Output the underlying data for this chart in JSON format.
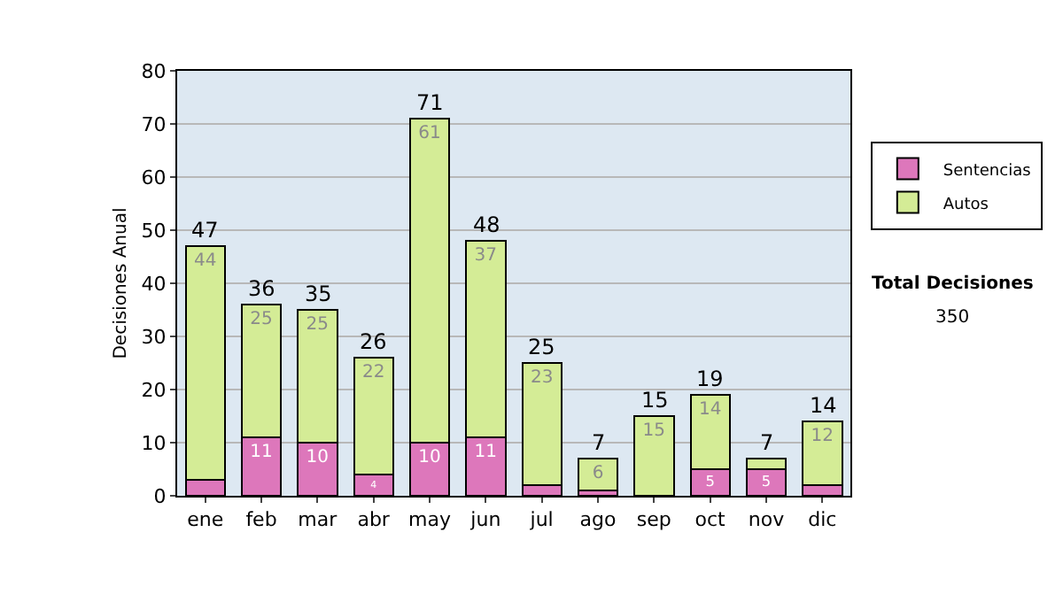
{
  "chart_data": {
    "type": "bar",
    "stacked": true,
    "ylabel": "Decisiones Anual",
    "categories": [
      "ene",
      "feb",
      "mar",
      "abr",
      "may",
      "jun",
      "jul",
      "ago",
      "sep",
      "oct",
      "nov",
      "dic"
    ],
    "series": [
      {
        "name": "Sentencias",
        "color": "#dd77bb",
        "values": [
          3,
          11,
          10,
          4,
          10,
          11,
          2,
          1,
          0,
          5,
          5,
          2
        ],
        "value_labels": [
          null,
          "11",
          "10",
          "4",
          "10",
          "11",
          null,
          null,
          null,
          "5",
          "5",
          null
        ]
      },
      {
        "name": "Autos",
        "color": "#d4ec96",
        "values": [
          44,
          25,
          25,
          22,
          61,
          37,
          23,
          6,
          15,
          14,
          2,
          12
        ],
        "value_labels": [
          "44",
          "25",
          "25",
          "22",
          "61",
          "37",
          "23",
          "6",
          "15",
          "14",
          null,
          "12"
        ]
      }
    ],
    "totals": [
      "47",
      "36",
      "35",
      "26",
      "71",
      "48",
      "25",
      "7",
      "15",
      "19",
      "7",
      "14"
    ],
    "ylim": [
      0,
      80
    ],
    "yticks": [
      0,
      10,
      20,
      30,
      40,
      50,
      60,
      70,
      80
    ],
    "grid": "y",
    "legend": "right",
    "annotations": [
      "Total Decisiones",
      "350"
    ]
  }
}
